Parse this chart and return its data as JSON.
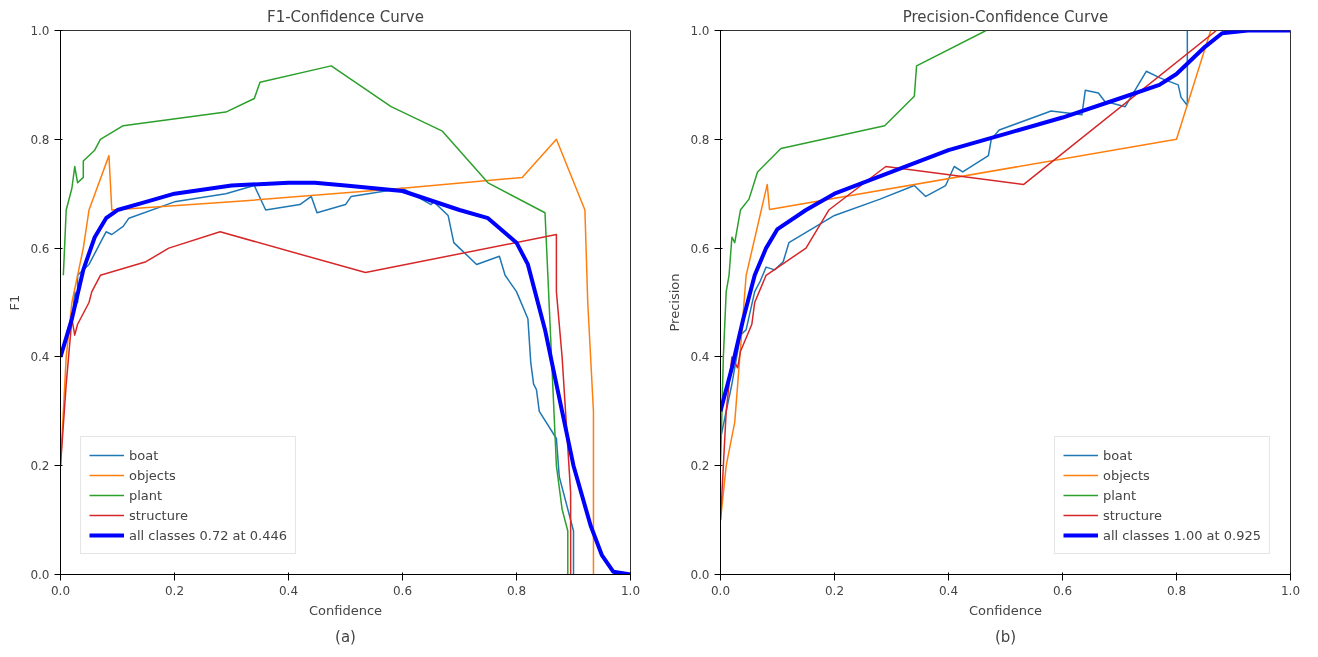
{
  "chart_data": [
    {
      "type": "line",
      "title": "F1-Confidence Curve",
      "xlabel": "Confidence",
      "ylabel": "F1",
      "xlim": [
        0,
        1
      ],
      "ylim": [
        0,
        1
      ],
      "xticks": [
        {
          "value": 0,
          "label": "0.0"
        },
        {
          "value": 0.2,
          "label": "0.2"
        },
        {
          "value": 0.4,
          "label": "0.4"
        },
        {
          "value": 0.6,
          "label": "0.6"
        },
        {
          "value": 0.8,
          "label": "0.8"
        },
        {
          "value": 1,
          "label": "1.0"
        }
      ],
      "yticks": [
        {
          "value": 0,
          "label": "0.0"
        },
        {
          "value": 0.2,
          "label": "0.2"
        },
        {
          "value": 0.4,
          "label": "0.4"
        },
        {
          "value": 0.6,
          "label": "0.6"
        },
        {
          "value": 0.8,
          "label": "0.8"
        },
        {
          "value": 1,
          "label": "1.0"
        }
      ],
      "grid": false,
      "legend": "bottom left",
      "annotations": [
        "(a)"
      ],
      "series": [
        {
          "name": "boat",
          "color": "#1f77b4",
          "x": [
            0,
            0.02,
            0.025,
            0.03,
            0.03,
            0.05,
            0.07,
            0.08,
            0.09,
            0.11,
            0.12,
            0.2,
            0.29,
            0.34,
            0.36,
            0.42,
            0.44,
            0.45,
            0.5,
            0.51,
            0.6,
            0.65,
            0.655,
            0.68,
            0.69,
            0.7,
            0.73,
            0.77,
            0.78,
            0.8,
            0.82,
            0.825,
            0.83,
            0.835,
            0.84,
            0.87,
            0.875,
            0.9,
            0.9
          ],
          "values": [
            0.4,
            0.46,
            0.52,
            0.5,
            0.55,
            0.57,
            0.61,
            0.63,
            0.625,
            0.64,
            0.655,
            0.685,
            0.7,
            0.715,
            0.67,
            0.68,
            0.695,
            0.665,
            0.68,
            0.695,
            0.71,
            0.68,
            0.685,
            0.66,
            0.61,
            0.6,
            0.57,
            0.585,
            0.55,
            0.52,
            0.47,
            0.39,
            0.35,
            0.34,
            0.3,
            0.25,
            0.18,
            0.08,
            0
          ]
        },
        {
          "name": "objects",
          "color": "#ff7f0e",
          "x": [
            0,
            0.01,
            0.02,
            0.03,
            0.04,
            0.05,
            0.085,
            0.09,
            0.3,
            0.6,
            0.81,
            0.87,
            0.92,
            0.925,
            0.935,
            0.935
          ],
          "values": [
            0.2,
            0.4,
            0.5,
            0.55,
            0.6,
            0.67,
            0.77,
            0.67,
            0.685,
            0.71,
            0.73,
            0.8,
            0.67,
            0.5,
            0.3,
            0
          ]
        },
        {
          "name": "plant",
          "color": "#2ca02c",
          "x": [
            0.005,
            0.01,
            0.02,
            0.025,
            0.03,
            0.04,
            0.04,
            0.06,
            0.07,
            0.11,
            0.29,
            0.34,
            0.35,
            0.475,
            0.58,
            0.67,
            0.75,
            0.85,
            0.855,
            0.87,
            0.88,
            0.89,
            0.89
          ],
          "values": [
            0.55,
            0.67,
            0.71,
            0.75,
            0.72,
            0.73,
            0.76,
            0.78,
            0.8,
            0.825,
            0.85,
            0.875,
            0.905,
            0.935,
            0.86,
            0.815,
            0.72,
            0.665,
            0.55,
            0.2,
            0.12,
            0.08,
            0
          ]
        },
        {
          "name": "structure",
          "color": "#d62728",
          "x": [
            0,
            0.01,
            0.02,
            0.025,
            0.03,
            0.05,
            0.055,
            0.07,
            0.15,
            0.19,
            0.28,
            0.535,
            0.87,
            0.87,
            0.88,
            0.895,
            0.895
          ],
          "values": [
            0.2,
            0.35,
            0.47,
            0.44,
            0.46,
            0.5,
            0.52,
            0.55,
            0.575,
            0.6,
            0.63,
            0.555,
            0.625,
            0.52,
            0.4,
            0.15,
            0
          ]
        },
        {
          "name": "all classes 0.72 at 0.446",
          "color": "#0000ff",
          "x": [
            0,
            0.02,
            0.04,
            0.06,
            0.08,
            0.1,
            0.15,
            0.2,
            0.3,
            0.4,
            0.446,
            0.5,
            0.6,
            0.7,
            0.75,
            0.8,
            0.82,
            0.85,
            0.88,
            0.9,
            0.93,
            0.95,
            0.97,
            1.0
          ],
          "values": [
            0.4,
            0.47,
            0.56,
            0.62,
            0.655,
            0.67,
            0.685,
            0.7,
            0.715,
            0.72,
            0.72,
            0.715,
            0.705,
            0.67,
            0.655,
            0.61,
            0.57,
            0.45,
            0.3,
            0.2,
            0.09,
            0.035,
            0.005,
            0
          ]
        }
      ]
    },
    {
      "type": "line",
      "title": "Precision-Confidence Curve",
      "xlabel": "Confidence",
      "ylabel": "Precision",
      "xlim": [
        0,
        1
      ],
      "ylim": [
        0,
        1
      ],
      "xticks": [
        {
          "value": 0,
          "label": "0.0"
        },
        {
          "value": 0.2,
          "label": "0.2"
        },
        {
          "value": 0.4,
          "label": "0.4"
        },
        {
          "value": 0.6,
          "label": "0.6"
        },
        {
          "value": 0.8,
          "label": "0.8"
        },
        {
          "value": 1,
          "label": "1.0"
        }
      ],
      "yticks": [
        {
          "value": 0,
          "label": "0.0"
        },
        {
          "value": 0.2,
          "label": "0.2"
        },
        {
          "value": 0.4,
          "label": "0.4"
        },
        {
          "value": 0.6,
          "label": "0.6"
        },
        {
          "value": 0.8,
          "label": "0.8"
        },
        {
          "value": 1,
          "label": "1.0"
        }
      ],
      "grid": false,
      "legend": "bottom right",
      "annotations": [
        "(b)"
      ],
      "series": [
        {
          "name": "boat",
          "color": "#1f77b4",
          "x": [
            0,
            0.02,
            0.035,
            0.045,
            0.06,
            0.07,
            0.08,
            0.095,
            0.11,
            0.12,
            0.2,
            0.28,
            0.34,
            0.36,
            0.395,
            0.41,
            0.425,
            0.47,
            0.475,
            0.489,
            0.58,
            0.634,
            0.64,
            0.663,
            0.674,
            0.71,
            0.747,
            0.771,
            0.803,
            0.808,
            0.819,
            0.819
          ],
          "values": [
            0.25,
            0.35,
            0.44,
            0.45,
            0.52,
            0.54,
            0.565,
            0.56,
            0.575,
            0.61,
            0.66,
            0.69,
            0.715,
            0.695,
            0.715,
            0.75,
            0.74,
            0.77,
            0.8,
            0.817,
            0.852,
            0.845,
            0.89,
            0.885,
            0.87,
            0.86,
            0.925,
            0.913,
            0.9,
            0.877,
            0.862,
            1.0
          ]
        },
        {
          "name": "objects",
          "color": "#ff7f0e",
          "x": [
            0,
            0.01,
            0.025,
            0.045,
            0.082,
            0.086,
            0.8,
            0.86
          ],
          "values": [
            0.1,
            0.2,
            0.28,
            0.55,
            0.717,
            0.671,
            0.8,
            1.0
          ]
        },
        {
          "name": "plant",
          "color": "#2ca02c",
          "x": [
            0,
            0.005,
            0.01,
            0.015,
            0.02,
            0.025,
            0.03,
            0.035,
            0.05,
            0.065,
            0.106,
            0.288,
            0.34,
            0.344,
            0.466
          ],
          "values": [
            0.2,
            0.4,
            0.52,
            0.55,
            0.62,
            0.61,
            0.64,
            0.67,
            0.69,
            0.74,
            0.783,
            0.825,
            0.879,
            0.935,
            1.0
          ]
        },
        {
          "name": "structure",
          "color": "#d62728",
          "x": [
            0,
            0.01,
            0.02,
            0.03,
            0.035,
            0.055,
            0.06,
            0.08,
            0.15,
            0.19,
            0.29,
            0.532,
            0.87
          ],
          "values": [
            0.1,
            0.3,
            0.4,
            0.38,
            0.41,
            0.46,
            0.5,
            0.55,
            0.6,
            0.67,
            0.75,
            0.717,
            1.0
          ]
        },
        {
          "name": "all classes 1.00 at 0.925",
          "color": "#0000ff",
          "x": [
            0,
            0.02,
            0.04,
            0.06,
            0.08,
            0.1,
            0.15,
            0.2,
            0.3,
            0.4,
            0.5,
            0.6,
            0.7,
            0.77,
            0.8,
            0.85,
            0.88,
            0.925,
            1.0
          ],
          "values": [
            0.3,
            0.38,
            0.47,
            0.55,
            0.6,
            0.635,
            0.67,
            0.7,
            0.74,
            0.78,
            0.81,
            0.84,
            0.875,
            0.9,
            0.92,
            0.97,
            0.995,
            1.0,
            1.0
          ]
        }
      ]
    }
  ]
}
